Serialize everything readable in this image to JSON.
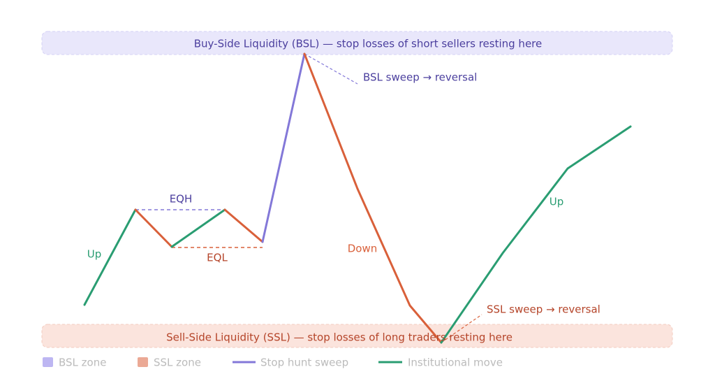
{
  "zones": {
    "bsl": "Buy-Side Liquidity (BSL) — stop losses of short sellers resting here",
    "ssl": "Sell-Side Liquidity (SSL) — stop losses of long traders resting here"
  },
  "annotations": {
    "up_left": "Up",
    "eqh": "EQH",
    "eql": "EQL",
    "bsl_sweep": "BSL sweep → reversal",
    "down": "Down",
    "ssl_sweep": "SSL sweep → reversal",
    "up_right": "Up"
  },
  "legend": [
    "BSL zone",
    "SSL zone",
    "Stop hunt sweep",
    "Institutional move"
  ]
}
